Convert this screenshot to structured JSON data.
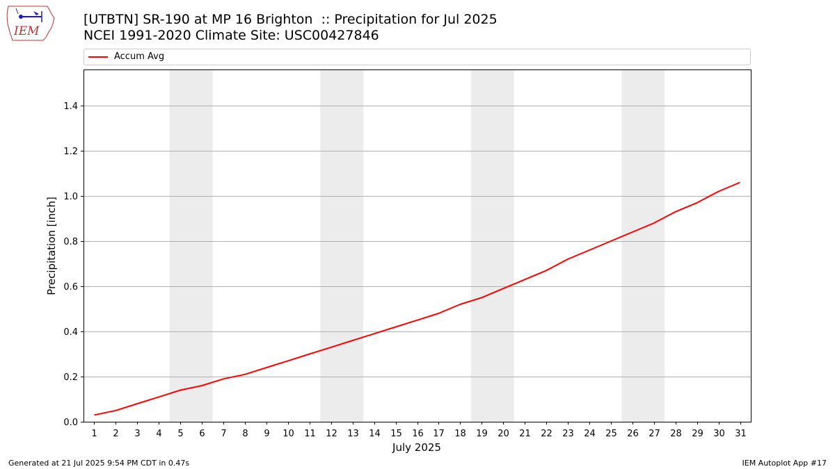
{
  "logo": {
    "name": "iem-logo",
    "text": "IEM"
  },
  "title_line1": "[UTBTN] SR-190 at MP 16 Brighton  :: Precipitation for Jul 2025",
  "title_line2": "NCEI 1991-2020 Climate Site: USC00427846",
  "footer": {
    "generated": "Generated at 21 Jul 2025 9:54 PM CDT in 0.47s",
    "app": "IEM Autoplot App #17"
  },
  "colors": {
    "line": "#ff0000",
    "weekend_band": "#ececec",
    "grid": "#b0b0b0"
  },
  "chart_data": {
    "type": "line",
    "xlabel": "July 2025",
    "ylabel": "Precipitation [inch]",
    "xlim": [
      0.5,
      31.5
    ],
    "ylim": [
      0,
      1.56
    ],
    "x_ticks": [
      1,
      2,
      3,
      4,
      5,
      6,
      7,
      8,
      9,
      10,
      11,
      12,
      13,
      14,
      15,
      16,
      17,
      18,
      19,
      20,
      21,
      22,
      23,
      24,
      25,
      26,
      27,
      28,
      29,
      30,
      31
    ],
    "y_ticks": [
      0.0,
      0.2,
      0.4,
      0.6,
      0.8,
      1.0,
      1.2,
      1.4
    ],
    "y_tick_labels": [
      "0.0",
      "0.2",
      "0.4",
      "0.6",
      "0.8",
      "1.0",
      "1.2",
      "1.4"
    ],
    "grid": "horizontal",
    "legend_position": "top",
    "weekend_bands": [
      [
        4.5,
        6.5
      ],
      [
        11.5,
        13.5
      ],
      [
        18.5,
        20.5
      ],
      [
        25.5,
        27.5
      ]
    ],
    "series": [
      {
        "name": "Accum Avg",
        "color": "#ff0000",
        "x": [
          1,
          2,
          3,
          4,
          5,
          6,
          7,
          8,
          9,
          10,
          11,
          12,
          13,
          14,
          15,
          16,
          17,
          18,
          19,
          20,
          21,
          22,
          23,
          24,
          25,
          26,
          27,
          28,
          29,
          30,
          31
        ],
        "y": [
          0.03,
          0.05,
          0.08,
          0.11,
          0.14,
          0.16,
          0.19,
          0.21,
          0.24,
          0.27,
          0.3,
          0.33,
          0.36,
          0.39,
          0.42,
          0.45,
          0.48,
          0.52,
          0.55,
          0.59,
          0.63,
          0.67,
          0.72,
          0.76,
          0.8,
          0.84,
          0.88,
          0.93,
          0.97,
          1.02,
          1.06
        ]
      }
    ]
  }
}
